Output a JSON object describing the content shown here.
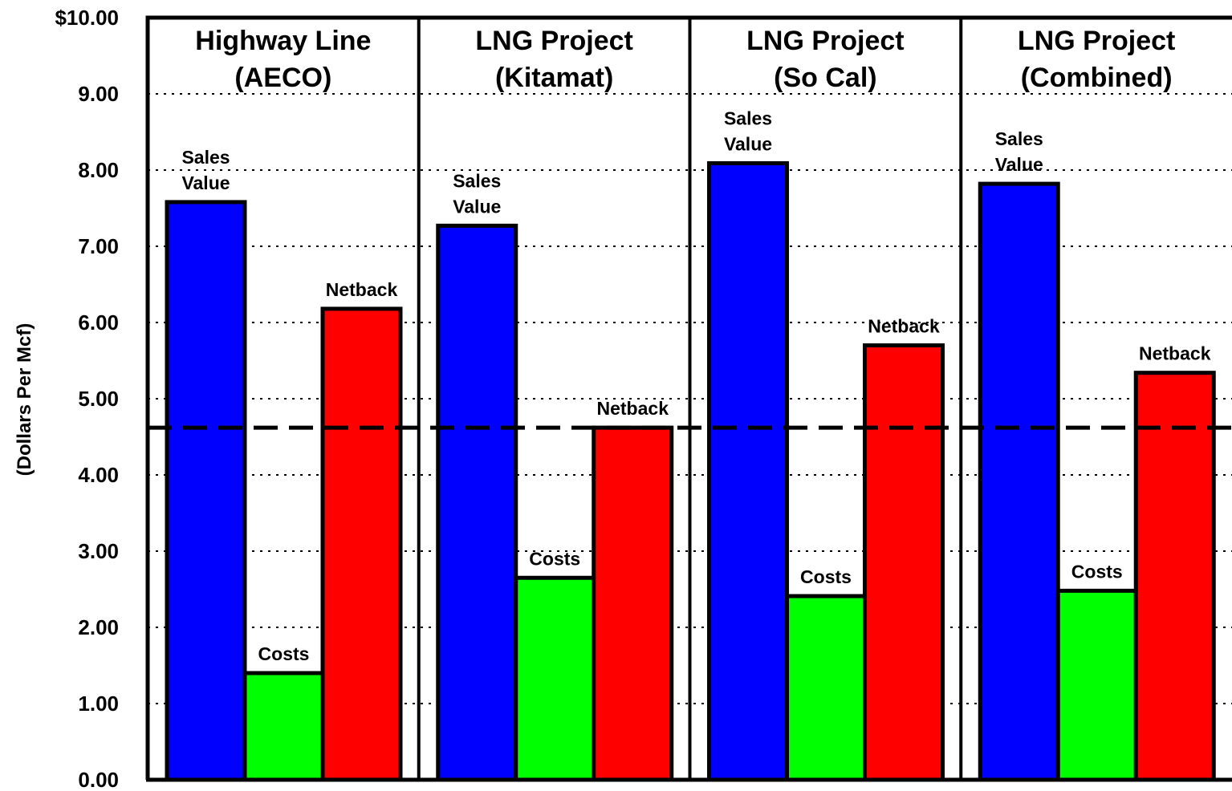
{
  "chart_data": {
    "type": "bar",
    "ylabel": "(Dollars Per Mcf)",
    "ylim": [
      0,
      10
    ],
    "yticks": [
      "0.00",
      "1.00",
      "2.00",
      "3.00",
      "4.00",
      "5.00",
      "6.00",
      "7.00",
      "8.00",
      "9.00",
      "$10.00"
    ],
    "grid": true,
    "reference_line": 4.62,
    "colors": {
      "sales": "#0000ff",
      "costs": "#00ff00",
      "netback": "#ff0000"
    },
    "panels": [
      {
        "title_lines": [
          "Highway Line",
          "(AECO)"
        ],
        "bars": [
          {
            "key": "sales",
            "label_lines": [
              "Sales",
              "Value"
            ],
            "value": 7.58
          },
          {
            "key": "costs",
            "label_lines": [
              "Costs"
            ],
            "value": 1.4
          },
          {
            "key": "netback",
            "label_lines": [
              "Netback"
            ],
            "value": 6.18
          }
        ]
      },
      {
        "title_lines": [
          "LNG Project",
          "(Kitamat)"
        ],
        "bars": [
          {
            "key": "sales",
            "label_lines": [
              "Sales",
              "Value"
            ],
            "value": 7.27
          },
          {
            "key": "costs",
            "label_lines": [
              "Costs"
            ],
            "value": 2.65
          },
          {
            "key": "netback",
            "label_lines": [
              "Netback"
            ],
            "value": 4.62
          }
        ]
      },
      {
        "title_lines": [
          "LNG Project",
          "(So Cal)"
        ],
        "bars": [
          {
            "key": "sales",
            "label_lines": [
              "Sales",
              "Value"
            ],
            "value": 8.09
          },
          {
            "key": "costs",
            "label_lines": [
              "Costs"
            ],
            "value": 2.41
          },
          {
            "key": "netback",
            "label_lines": [
              "Netback"
            ],
            "value": 5.7
          }
        ]
      },
      {
        "title_lines": [
          "LNG Project",
          "(Combined)"
        ],
        "bars": [
          {
            "key": "sales",
            "label_lines": [
              "Sales",
              "Value"
            ],
            "value": 7.82
          },
          {
            "key": "costs",
            "label_lines": [
              "Costs"
            ],
            "value": 2.48
          },
          {
            "key": "netback",
            "label_lines": [
              "Netback"
            ],
            "value": 5.34
          }
        ]
      }
    ]
  }
}
